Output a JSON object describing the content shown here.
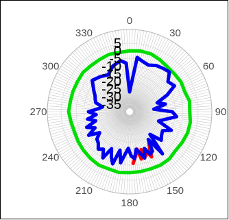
{
  "chart_data": {
    "type": "polar-line",
    "title": "",
    "angular_axis": {
      "direction": "clockwise",
      "zero_at": "top",
      "tick_labels": [
        "0",
        "30",
        "60",
        "90",
        "120",
        "150",
        "180",
        "210",
        "240",
        "270",
        "300",
        "330"
      ]
    },
    "radial_axis": {
      "range": [
        -40,
        5
      ],
      "tick_labels": [
        "5",
        "0",
        "-5",
        "-10",
        "-15",
        "-20",
        "-25",
        "-30",
        "-35"
      ]
    },
    "grid": true,
    "series": [
      {
        "color": "#ff0000",
        "points": [
          [
            148,
            -16
          ],
          [
            151,
            -13
          ],
          [
            154,
            -7
          ],
          [
            157,
            -12
          ],
          [
            160,
            -9
          ],
          [
            163,
            -14
          ],
          [
            166,
            -8
          ],
          [
            169,
            -15
          ],
          [
            172,
            -11
          ],
          [
            176,
            -6
          ]
        ]
      },
      {
        "color": "#00dd00",
        "points": [
          [
            0,
            0
          ],
          [
            10,
            0.5
          ],
          [
            20,
            0.5
          ],
          [
            30,
            -0.5
          ],
          [
            40,
            -1.5
          ],
          [
            50,
            -1.5
          ],
          [
            60,
            -1
          ],
          [
            70,
            -1.5
          ],
          [
            80,
            0
          ],
          [
            90,
            -0.5
          ],
          [
            100,
            0.5
          ],
          [
            110,
            0.5
          ],
          [
            120,
            0
          ],
          [
            130,
            -0.5
          ],
          [
            140,
            0.5
          ],
          [
            150,
            0.5
          ],
          [
            160,
            0
          ],
          [
            170,
            0
          ],
          [
            180,
            0
          ],
          [
            190,
            0.5
          ],
          [
            200,
            0
          ],
          [
            210,
            0.5
          ],
          [
            220,
            0
          ],
          [
            230,
            -0.5
          ],
          [
            240,
            -1
          ],
          [
            250,
            -1.5
          ],
          [
            260,
            -1
          ],
          [
            270,
            0
          ],
          [
            280,
            -0.5
          ],
          [
            290,
            -0.5
          ],
          [
            300,
            -0.5
          ],
          [
            310,
            0
          ],
          [
            320,
            -0.5
          ],
          [
            330,
            -0.5
          ],
          [
            340,
            0
          ],
          [
            350,
            -0.5
          ],
          [
            360,
            0
          ]
        ]
      },
      {
        "color": "#0000ee",
        "points": [
          [
            0,
            -27
          ],
          [
            8,
            -4
          ],
          [
            15,
            -6
          ],
          [
            22,
            -7
          ],
          [
            30,
            -5
          ],
          [
            38,
            -4
          ],
          [
            45,
            -3
          ],
          [
            52,
            -8
          ],
          [
            60,
            -6
          ],
          [
            66,
            -13
          ],
          [
            72,
            -21
          ],
          [
            78,
            -16
          ],
          [
            84,
            -24
          ],
          [
            90,
            -12
          ],
          [
            96,
            -9
          ],
          [
            102,
            -16
          ],
          [
            108,
            -20
          ],
          [
            114,
            -10
          ],
          [
            120,
            -15
          ],
          [
            126,
            -14
          ],
          [
            132,
            -12
          ],
          [
            138,
            -20
          ],
          [
            142,
            -5
          ],
          [
            146,
            -18
          ],
          [
            150,
            -10
          ],
          [
            154,
            -9
          ],
          [
            158,
            -14
          ],
          [
            162,
            -8
          ],
          [
            166,
            -12
          ],
          [
            170,
            -15
          ],
          [
            174,
            -9
          ],
          [
            178,
            -11
          ],
          [
            182,
            -16
          ],
          [
            186,
            -12
          ],
          [
            190,
            -6
          ],
          [
            194,
            -14
          ],
          [
            198,
            -4
          ],
          [
            202,
            -8
          ],
          [
            206,
            -13
          ],
          [
            210,
            -5
          ],
          [
            215,
            -10
          ],
          [
            220,
            -8
          ],
          [
            225,
            -11
          ],
          [
            230,
            -12
          ],
          [
            235,
            -16
          ],
          [
            240,
            -9
          ],
          [
            245,
            -15
          ],
          [
            250,
            -10
          ],
          [
            255,
            -17
          ],
          [
            260,
            -12
          ],
          [
            265,
            -18
          ],
          [
            270,
            -13
          ],
          [
            275,
            -19
          ],
          [
            280,
            -22
          ],
          [
            285,
            -17
          ],
          [
            290,
            -16
          ],
          [
            295,
            -15
          ],
          [
            300,
            -13
          ],
          [
            310,
            -8
          ],
          [
            320,
            -10
          ],
          [
            330,
            -12
          ],
          [
            340,
            -8
          ],
          [
            350,
            -6
          ],
          [
            356,
            -8
          ],
          [
            360,
            -27
          ]
        ]
      }
    ]
  }
}
